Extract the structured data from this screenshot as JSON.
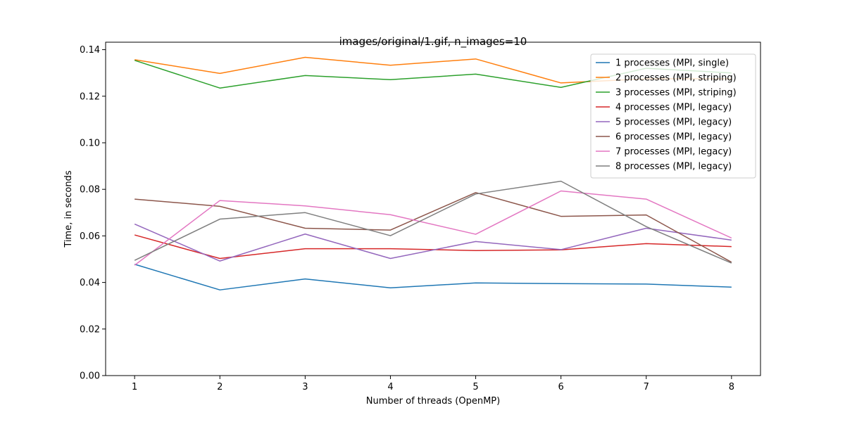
{
  "chart_data": {
    "type": "line",
    "title": "images/original/1.gif, n_images=10",
    "xlabel": "Number of threads (OpenMP)",
    "ylabel": "Time, in seconds",
    "x": [
      1,
      2,
      3,
      4,
      5,
      6,
      7,
      8
    ],
    "x_ticks": [
      "1",
      "2",
      "3",
      "4",
      "5",
      "6",
      "7",
      "8"
    ],
    "xlim": [
      0.66,
      8.34
    ],
    "ylim": [
      0.0,
      0.1432
    ],
    "y_ticks": [
      "0.00",
      "0.02",
      "0.04",
      "0.06",
      "0.08",
      "0.10",
      "0.12",
      "0.14"
    ],
    "grid": false,
    "legend_position": "top-right",
    "series": [
      {
        "name": "1 processes (MPI, single)",
        "color": "#1f77b4",
        "values": [
          0.0478,
          0.0368,
          0.0415,
          0.0377,
          0.0398,
          0.0395,
          0.0393,
          0.038
        ]
      },
      {
        "name": "2 processes (MPI, striping)",
        "color": "#ff7f0e",
        "values": [
          0.1357,
          0.1298,
          0.1367,
          0.1333,
          0.136,
          0.1257,
          0.1275,
          0.1275
        ]
      },
      {
        "name": "3 processes (MPI, striping)",
        "color": "#2ca02c",
        "values": [
          0.1354,
          0.1235,
          0.1289,
          0.1271,
          0.1295,
          0.1238,
          0.132,
          0.13
        ]
      },
      {
        "name": "4 processes (MPI, legacy)",
        "color": "#d62728",
        "values": [
          0.0604,
          0.0503,
          0.0545,
          0.0545,
          0.0537,
          0.054,
          0.0567,
          0.0554
        ]
      },
      {
        "name": "5 processes (MPI, legacy)",
        "color": "#9467bd",
        "values": [
          0.0651,
          0.0492,
          0.0608,
          0.0503,
          0.0576,
          0.0541,
          0.0633,
          0.0582
        ]
      },
      {
        "name": "6 processes (MPI, legacy)",
        "color": "#8c564b",
        "values": [
          0.0758,
          0.0727,
          0.0633,
          0.0625,
          0.0786,
          0.0684,
          0.069,
          0.0487
        ]
      },
      {
        "name": "7 processes (MPI, legacy)",
        "color": "#e377c2",
        "values": [
          0.0474,
          0.0752,
          0.0729,
          0.0691,
          0.0607,
          0.0793,
          0.0758,
          0.0591
        ]
      },
      {
        "name": "8 processes (MPI, legacy)",
        "color": "#7f7f7f",
        "values": [
          0.0495,
          0.0672,
          0.07,
          0.0601,
          0.078,
          0.0835,
          0.064,
          0.0483
        ]
      }
    ]
  }
}
